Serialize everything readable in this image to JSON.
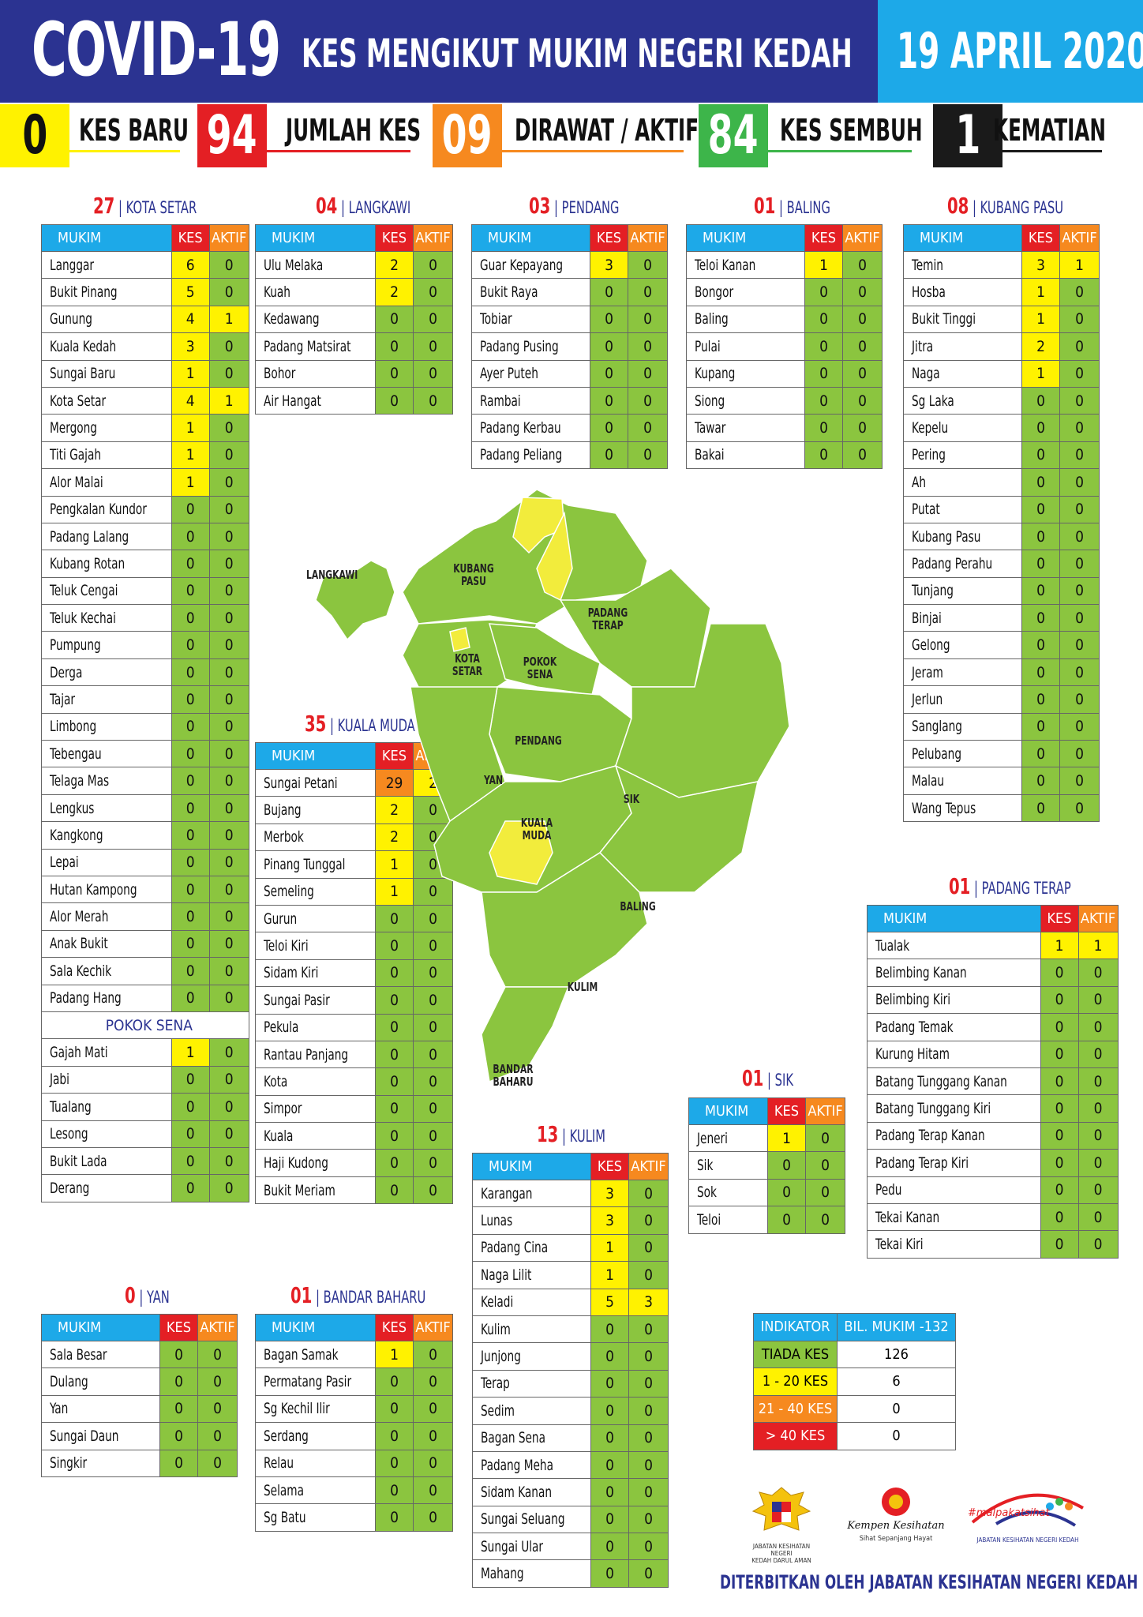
{
  "header": {
    "title": "COVID-19",
    "subtitle": "KES MENGIKUT MUKIM NEGERI KEDAH",
    "date": "19 APRIL 2020"
  },
  "stats": [
    {
      "value": "0",
      "label": "KES BARU",
      "color": "#fff200",
      "text": "#111"
    },
    {
      "value": "94",
      "label": "JUMLAH KES",
      "color": "#e41f24",
      "text": "#fff"
    },
    {
      "value": "09",
      "label": "DIRAWAT / AKTIF",
      "color": "#f6891f",
      "text": "#fff"
    },
    {
      "value": "84",
      "label": "KES SEMBUH",
      "color": "#3db54a",
      "text": "#fff"
    },
    {
      "value": "1",
      "label": "KEMATIAN",
      "color": "#1a1a1a",
      "text": "#fff"
    }
  ],
  "columns": {
    "mukim": "MUKIM",
    "kes": "KES",
    "aktif": "AKTIF"
  },
  "districts": {
    "kota_setar": {
      "count": "27",
      "name": "KOTA SETAR",
      "rows": [
        [
          "Langgar",
          "6",
          "0"
        ],
        [
          "Bukit Pinang",
          "5",
          "0"
        ],
        [
          "Gunung",
          "4",
          "1"
        ],
        [
          "Kuala Kedah",
          "3",
          "0"
        ],
        [
          "Sungai Baru",
          "1",
          "0"
        ],
        [
          "Kota Setar",
          "4",
          "1"
        ],
        [
          "Mergong",
          "1",
          "0"
        ],
        [
          "Titi Gajah",
          "1",
          "0"
        ],
        [
          "Alor Malai",
          "1",
          "0"
        ],
        [
          "Pengkalan Kundor",
          "0",
          "0"
        ],
        [
          "Padang Lalang",
          "0",
          "0"
        ],
        [
          "Kubang Rotan",
          "0",
          "0"
        ],
        [
          "Teluk Cengai",
          "0",
          "0"
        ],
        [
          "Teluk Kechai",
          "0",
          "0"
        ],
        [
          "Pumpung",
          "0",
          "0"
        ],
        [
          "Derga",
          "0",
          "0"
        ],
        [
          "Tajar",
          "0",
          "0"
        ],
        [
          "Limbong",
          "0",
          "0"
        ],
        [
          "Tebengau",
          "0",
          "0"
        ],
        [
          "Telaga Mas",
          "0",
          "0"
        ],
        [
          "Lengkus",
          "0",
          "0"
        ],
        [
          "Kangkong",
          "0",
          "0"
        ],
        [
          "Lepai",
          "0",
          "0"
        ],
        [
          "Hutan Kampong",
          "0",
          "0"
        ],
        [
          "Alor Merah",
          "0",
          "0"
        ],
        [
          "Anak Bukit",
          "0",
          "0"
        ],
        [
          "Sala Kechik",
          "0",
          "0"
        ],
        [
          "Padang Hang",
          "0",
          "0"
        ]
      ],
      "sub_title": "POKOK SENA",
      "sub_rows": [
        [
          "Gajah Mati",
          "1",
          "0"
        ],
        [
          "Jabi",
          "0",
          "0"
        ],
        [
          "Tualang",
          "0",
          "0"
        ],
        [
          "Lesong",
          "0",
          "0"
        ],
        [
          "Bukit Lada",
          "0",
          "0"
        ],
        [
          "Derang",
          "0",
          "0"
        ]
      ]
    },
    "langkawi": {
      "count": "04",
      "name": "LANGKAWI",
      "rows": [
        [
          "Ulu Melaka",
          "2",
          "0"
        ],
        [
          "Kuah",
          "2",
          "0"
        ],
        [
          "Kedawang",
          "0",
          "0"
        ],
        [
          "Padang Matsirat",
          "0",
          "0"
        ],
        [
          "Bohor",
          "0",
          "0"
        ],
        [
          "Air Hangat",
          "0",
          "0"
        ]
      ]
    },
    "pendang": {
      "count": "03",
      "name": "PENDANG",
      "rows": [
        [
          "Guar Kepayang",
          "3",
          "0"
        ],
        [
          "Bukit Raya",
          "0",
          "0"
        ],
        [
          "Tobiar",
          "0",
          "0"
        ],
        [
          "Padang Pusing",
          "0",
          "0"
        ],
        [
          "Ayer Puteh",
          "0",
          "0"
        ],
        [
          "Rambai",
          "0",
          "0"
        ],
        [
          "Padang Kerbau",
          "0",
          "0"
        ],
        [
          "Padang Peliang",
          "0",
          "0"
        ]
      ]
    },
    "baling": {
      "count": "01",
      "name": "BALING",
      "rows": [
        [
          "Teloi Kanan",
          "1",
          "0"
        ],
        [
          "Bongor",
          "0",
          "0"
        ],
        [
          "Baling",
          "0",
          "0"
        ],
        [
          "Pulai",
          "0",
          "0"
        ],
        [
          "Kupang",
          "0",
          "0"
        ],
        [
          "Siong",
          "0",
          "0"
        ],
        [
          "Tawar",
          "0",
          "0"
        ],
        [
          "Bakai",
          "0",
          "0"
        ]
      ]
    },
    "kubang_pasu": {
      "count": "08",
      "name": "KUBANG PASU",
      "rows": [
        [
          "Temin",
          "3",
          "1"
        ],
        [
          "Hosba",
          "1",
          "0"
        ],
        [
          "Bukit Tinggi",
          "1",
          "0"
        ],
        [
          "Jitra",
          "2",
          "0"
        ],
        [
          "Naga",
          "1",
          "0"
        ],
        [
          "Sg Laka",
          "0",
          "0"
        ],
        [
          "Kepelu",
          "0",
          "0"
        ],
        [
          "Pering",
          "0",
          "0"
        ],
        [
          "Ah",
          "0",
          "0"
        ],
        [
          "Putat",
          "0",
          "0"
        ],
        [
          "Kubang Pasu",
          "0",
          "0"
        ],
        [
          "Padang Perahu",
          "0",
          "0"
        ],
        [
          "Tunjang",
          "0",
          "0"
        ],
        [
          "Binjai",
          "0",
          "0"
        ],
        [
          "Gelong",
          "0",
          "0"
        ],
        [
          "Jeram",
          "0",
          "0"
        ],
        [
          "Jerlun",
          "0",
          "0"
        ],
        [
          "Sanglang",
          "0",
          "0"
        ],
        [
          "Pelubang",
          "0",
          "0"
        ],
        [
          "Malau",
          "0",
          "0"
        ],
        [
          "Wang Tepus",
          "0",
          "0"
        ]
      ]
    },
    "kuala_muda": {
      "count": "35",
      "name": "KUALA MUDA",
      "rows": [
        [
          "Sungai Petani",
          "29",
          "2"
        ],
        [
          "Bujang",
          "2",
          "0"
        ],
        [
          "Merbok",
          "2",
          "0"
        ],
        [
          "Pinang Tunggal",
          "1",
          "0"
        ],
        [
          "Semeling",
          "1",
          "0"
        ],
        [
          "Gurun",
          "0",
          "0"
        ],
        [
          "Teloi Kiri",
          "0",
          "0"
        ],
        [
          "Sidam Kiri",
          "0",
          "0"
        ],
        [
          "Sungai Pasir",
          "0",
          "0"
        ],
        [
          "Pekula",
          "0",
          "0"
        ],
        [
          "Rantau Panjang",
          "0",
          "0"
        ],
        [
          "Kota",
          "0",
          "0"
        ],
        [
          "Simpor",
          "0",
          "0"
        ],
        [
          "Kuala",
          "0",
          "0"
        ],
        [
          "Haji Kudong",
          "0",
          "0"
        ],
        [
          "Bukit Meriam",
          "0",
          "0"
        ]
      ]
    },
    "padang_terap": {
      "count": "01",
      "name": "PADANG TERAP",
      "rows": [
        [
          "Tualak",
          "1",
          "1"
        ],
        [
          "Belimbing Kanan",
          "0",
          "0"
        ],
        [
          "Belimbing Kiri",
          "0",
          "0"
        ],
        [
          "Padang Temak",
          "0",
          "0"
        ],
        [
          "Kurung Hitam",
          "0",
          "0"
        ],
        [
          "Batang Tunggang Kanan",
          "0",
          "0"
        ],
        [
          "Batang Tunggang Kiri",
          "0",
          "0"
        ],
        [
          "Padang Terap Kanan",
          "0",
          "0"
        ],
        [
          "Padang Terap Kiri",
          "0",
          "0"
        ],
        [
          "Pedu",
          "0",
          "0"
        ],
        [
          "Tekai Kanan",
          "0",
          "0"
        ],
        [
          "Tekai Kiri",
          "0",
          "0"
        ]
      ]
    },
    "sik": {
      "count": "01",
      "name": "SIK",
      "rows": [
        [
          "Jeneri",
          "1",
          "0"
        ],
        [
          "Sik",
          "0",
          "0"
        ],
        [
          "Sok",
          "0",
          "0"
        ],
        [
          "Teloi",
          "0",
          "0"
        ]
      ]
    },
    "kulim": {
      "count": "13",
      "name": "KULIM",
      "rows": [
        [
          "Karangan",
          "3",
          "0"
        ],
        [
          "Lunas",
          "3",
          "0"
        ],
        [
          "Padang Cina",
          "1",
          "0"
        ],
        [
          "Naga Lilit",
          "1",
          "0"
        ],
        [
          "Keladi",
          "5",
          "3"
        ],
        [
          "Kulim",
          "0",
          "0"
        ],
        [
          "Junjong",
          "0",
          "0"
        ],
        [
          "Terap",
          "0",
          "0"
        ],
        [
          "Sedim",
          "0",
          "0"
        ],
        [
          "Bagan Sena",
          "0",
          "0"
        ],
        [
          "Padang Meha",
          "0",
          "0"
        ],
        [
          "Sidam Kanan",
          "0",
          "0"
        ],
        [
          "Sungai Seluang",
          "0",
          "0"
        ],
        [
          "Sungai Ular",
          "0",
          "0"
        ],
        [
          "Mahang",
          "0",
          "0"
        ]
      ]
    },
    "yan": {
      "count": "0",
      "name": "YAN",
      "rows": [
        [
          "Sala Besar",
          "0",
          "0"
        ],
        [
          "Dulang",
          "0",
          "0"
        ],
        [
          "Yan",
          "0",
          "0"
        ],
        [
          "Sungai Daun",
          "0",
          "0"
        ],
        [
          "Singkir",
          "0",
          "0"
        ]
      ]
    },
    "bandar_baharu": {
      "count": "01",
      "name": "BANDAR BAHARU",
      "rows": [
        [
          "Bagan Samak",
          "1",
          "0"
        ],
        [
          "Permatang Pasir",
          "0",
          "0"
        ],
        [
          "Sg Kechil Ilir",
          "0",
          "0"
        ],
        [
          "Serdang",
          "0",
          "0"
        ],
        [
          "Relau",
          "0",
          "0"
        ],
        [
          "Selama",
          "0",
          "0"
        ],
        [
          "Sg Batu",
          "0",
          "0"
        ]
      ]
    }
  },
  "map": {
    "labels": [
      "KUBANG PASU",
      "LANGKAWI",
      "PADANG TERAP",
      "KOTA SETAR",
      "POKOK SENA",
      "PENDANG",
      "YAN",
      "SIK",
      "KUALA MUDA",
      "BALING",
      "KULIM",
      "BANDAR BAHARU"
    ],
    "green": "#8bc53f",
    "yellow": "#f2ec3c"
  },
  "legend": {
    "header": [
      "INDIKATOR",
      "BIL. MUKIM -132"
    ],
    "rows": [
      [
        "TIADA KES",
        "126",
        "#8bc53f"
      ],
      [
        "1 - 20 KES",
        "6",
        "#fff200"
      ],
      [
        "21 - 40 KES",
        "0",
        "#f6891f"
      ],
      [
        "> 40 KES",
        "0",
        "#e41f24"
      ]
    ]
  },
  "logos": {
    "jkn": "JABATAN KESIHATAN NEGERI KEDAH DARUL AMAN",
    "kk_script": "Kempen Kesihatan",
    "kk_tag": "Sihat Sepanjang Hayat",
    "hashtag": "#malpakatsihat",
    "jkn2": "JABATAN KESIHATAN NEGERI KEDAH"
  },
  "footer": "DITERBITKAN OLEH JABATAN KESIHATAN NEGERI KEDAH"
}
